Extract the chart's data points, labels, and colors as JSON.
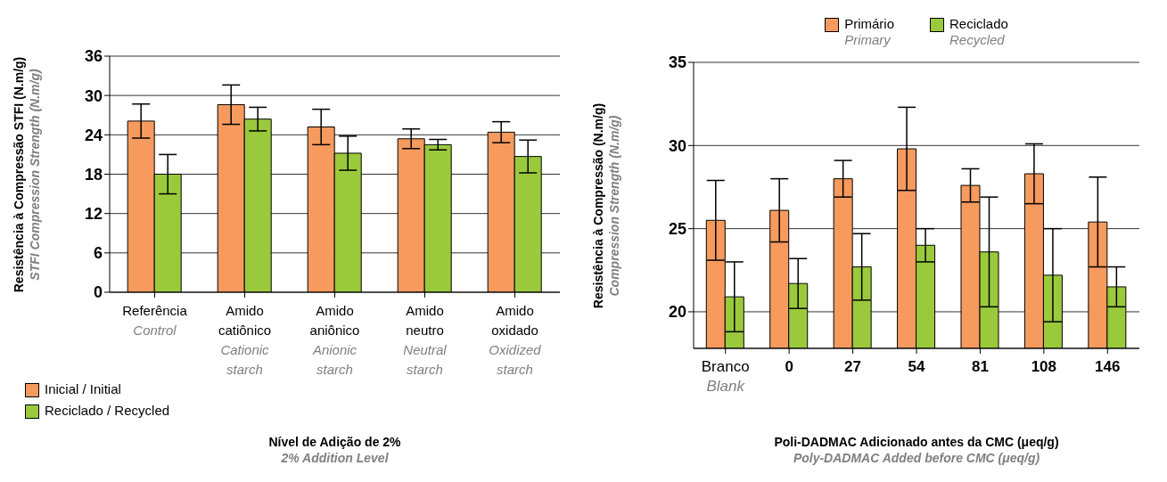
{
  "chart_data": [
    {
      "type": "bar",
      "ylabel": "Resistência à Compressão STFI (N.m/g)\nSTFI Compression Strength (N.m/g)",
      "xlabel": "Nível de Adição de 2%\n2% Addition Level",
      "categories": [
        "Referência\nControl",
        "Amido catiônico\nCationic starch",
        "Amido aniônico\nAnionic starch",
        "Amido neutro\nNeutral starch",
        "Amido oxidado\nOxidized starch"
      ],
      "series": [
        {
          "name": "Inicial / Initial",
          "color": "#f79a5e",
          "values": [
            26.1,
            28.6,
            25.2,
            23.4,
            24.4
          ],
          "errors": [
            2.6,
            3.0,
            2.7,
            1.5,
            1.6
          ]
        },
        {
          "name": "Reciclado / Recycled",
          "color": "#9aca3c",
          "values": [
            18.0,
            26.4,
            21.2,
            22.5,
            20.7
          ],
          "errors": [
            3.0,
            1.8,
            2.6,
            0.8,
            2.5
          ]
        }
      ],
      "ylim": [
        0,
        36
      ],
      "yticks": [
        0,
        6,
        12,
        18,
        24,
        30,
        36
      ],
      "grid": "y",
      "legend": "bottom left"
    },
    {
      "type": "bar",
      "ylabel": "Resistência à Compressão (N.m/g)\nCompression Strength (N.m/g)",
      "xlabel": "Poli-DADMAC Adicionado antes da CMC (μeq/g)\nPoly-DADMAC Added before CMC (μeq/g)",
      "categories": [
        "Branco\nBlank",
        "0",
        "27",
        "54",
        "81",
        "108",
        "146"
      ],
      "series": [
        {
          "name": "Primário\nPrimary",
          "color": "#f79a5e",
          "values": [
            25.5,
            26.1,
            28.0,
            29.8,
            27.6,
            28.3,
            25.4
          ],
          "errors": [
            2.4,
            1.9,
            1.1,
            2.5,
            1.0,
            1.8,
            2.7
          ]
        },
        {
          "name": "Reciclado\nRecycled",
          "color": "#9aca3c",
          "values": [
            20.9,
            21.7,
            22.7,
            24.0,
            23.6,
            22.2,
            21.5
          ],
          "errors": [
            2.1,
            1.5,
            2.0,
            1.0,
            3.3,
            2.8,
            1.2
          ]
        }
      ],
      "ylim": [
        17.8,
        35
      ],
      "yticks": [
        20,
        25,
        30,
        35
      ],
      "grid": "y",
      "legend": "top"
    }
  ]
}
